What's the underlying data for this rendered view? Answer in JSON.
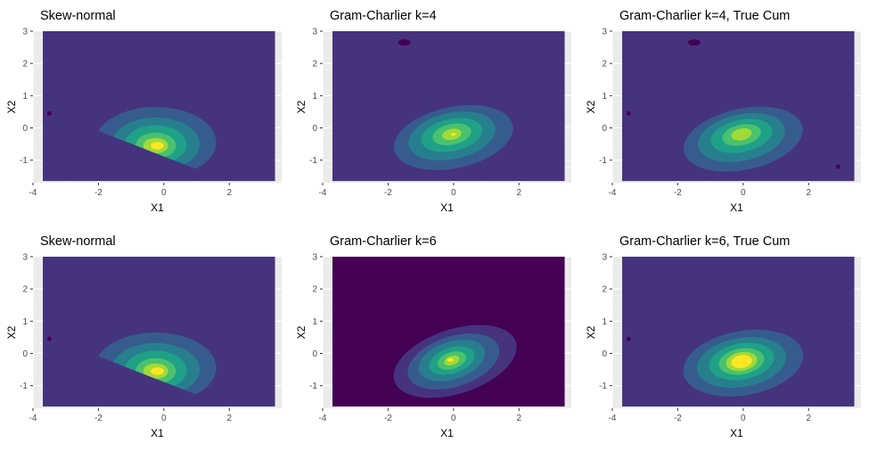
{
  "figure": {
    "background": "#ffffff"
  },
  "theme": {
    "panel_background": "#ebebeb",
    "grid_major": "#ffffff",
    "grid_minor": "#f4f4f4",
    "tick_text": "#4d4d4d",
    "title_text": "#000000"
  },
  "chart_data": [
    {
      "type": "contour",
      "title": "Skew-normal",
      "xlabel": "X1",
      "ylabel": "X2",
      "xlim": [
        -4,
        3.6
      ],
      "ylim": [
        -1.7,
        3.0
      ],
      "xticks": [
        -4,
        -2,
        0,
        2
      ],
      "yticks": [
        -1,
        0,
        1,
        2,
        3
      ],
      "fill_x_range": [
        -3.7,
        3.4
      ],
      "fill_y_range": [
        -1.65,
        3.0
      ],
      "background_level_color": "#46337e",
      "levels": [
        {
          "color": "#365c8d",
          "cx": -0.25,
          "cy": -0.45,
          "rx": 1.85,
          "ry": 1.1,
          "angle": 0
        },
        {
          "color": "#277f8e",
          "cx": -0.25,
          "cy": -0.5,
          "rx": 1.35,
          "ry": 0.82,
          "angle": 0
        },
        {
          "color": "#1fa187",
          "cx": -0.25,
          "cy": -0.52,
          "rx": 0.95,
          "ry": 0.6,
          "angle": 0
        },
        {
          "color": "#4ac16d",
          "cx": -0.25,
          "cy": -0.55,
          "rx": 0.62,
          "ry": 0.4,
          "angle": 0
        },
        {
          "color": "#a0da39",
          "cx": -0.25,
          "cy": -0.55,
          "rx": 0.38,
          "ry": 0.24,
          "angle": 0
        },
        {
          "color": "#fde725",
          "cx": -0.2,
          "cy": -0.55,
          "rx": 0.2,
          "ry": 0.12,
          "angle": 0
        }
      ],
      "clip": "skew",
      "specks": [
        {
          "x": -3.5,
          "y": 0.45,
          "color": "#440154"
        }
      ]
    },
    {
      "type": "contour",
      "title": "Gram-Charlier k=4",
      "xlabel": "X1",
      "ylabel": "X2",
      "xlim": [
        -4,
        3.6
      ],
      "ylim": [
        -1.7,
        3.0
      ],
      "xticks": [
        -4,
        -2,
        0,
        2
      ],
      "yticks": [
        -1,
        0,
        1,
        2,
        3
      ],
      "fill_x_range": [
        -3.7,
        3.4
      ],
      "fill_y_range": [
        -1.65,
        3.0
      ],
      "background_level_color": "#46337e",
      "levels": [
        {
          "color": "#365c8d",
          "cx": 0.0,
          "cy": -0.3,
          "rx": 1.85,
          "ry": 0.95,
          "angle": -12
        },
        {
          "color": "#277f8e",
          "cx": -0.05,
          "cy": -0.25,
          "rx": 1.35,
          "ry": 0.72,
          "angle": -12
        },
        {
          "color": "#1fa187",
          "cx": -0.05,
          "cy": -0.22,
          "rx": 0.95,
          "ry": 0.5,
          "angle": -12
        },
        {
          "color": "#4ac16d",
          "cx": -0.05,
          "cy": -0.2,
          "rx": 0.6,
          "ry": 0.32,
          "angle": -12
        },
        {
          "color": "#a0da39",
          "cx": -0.05,
          "cy": -0.2,
          "rx": 0.3,
          "ry": 0.17,
          "angle": -12
        },
        {
          "color": "#fde725",
          "cx": 0.0,
          "cy": -0.2,
          "rx": 0.08,
          "ry": 0.04,
          "angle": 0
        }
      ],
      "clip": "none",
      "specks": [
        {
          "x": -1.5,
          "y": 2.65,
          "color": "#440154",
          "big": true
        }
      ]
    },
    {
      "type": "contour",
      "title": "Gram-Charlier k=4, True Cum",
      "xlabel": "X1",
      "ylabel": "X2",
      "xlim": [
        -4,
        3.6
      ],
      "ylim": [
        -1.7,
        3.0
      ],
      "xticks": [
        -4,
        -2,
        0,
        2
      ],
      "yticks": [
        -1,
        0,
        1,
        2,
        3
      ],
      "fill_x_range": [
        -3.7,
        3.4
      ],
      "fill_y_range": [
        -1.65,
        3.0
      ],
      "background_level_color": "#46337e",
      "levels": [
        {
          "color": "#365c8d",
          "cx": 0.0,
          "cy": -0.35,
          "rx": 1.85,
          "ry": 0.95,
          "angle": -12
        },
        {
          "color": "#277f8e",
          "cx": -0.05,
          "cy": -0.3,
          "rx": 1.35,
          "ry": 0.72,
          "angle": -12
        },
        {
          "color": "#1fa187",
          "cx": -0.05,
          "cy": -0.25,
          "rx": 0.95,
          "ry": 0.5,
          "angle": -12
        },
        {
          "color": "#4ac16d",
          "cx": -0.05,
          "cy": -0.22,
          "rx": 0.6,
          "ry": 0.32,
          "angle": -12
        },
        {
          "color": "#a0da39",
          "cx": -0.05,
          "cy": -0.2,
          "rx": 0.32,
          "ry": 0.18,
          "angle": -12
        }
      ],
      "clip": "none",
      "specks": [
        {
          "x": -1.5,
          "y": 2.65,
          "color": "#440154",
          "big": true
        },
        {
          "x": -3.5,
          "y": 0.45,
          "color": "#440154"
        },
        {
          "x": 2.9,
          "y": -1.2,
          "color": "#440154"
        }
      ]
    },
    {
      "type": "contour",
      "title": "Skew-normal",
      "xlabel": "X1",
      "ylabel": "X2",
      "xlim": [
        -4,
        3.6
      ],
      "ylim": [
        -1.7,
        3.0
      ],
      "xticks": [
        -4,
        -2,
        0,
        2
      ],
      "yticks": [
        -1,
        0,
        1,
        2,
        3
      ],
      "fill_x_range": [
        -3.7,
        3.4
      ],
      "fill_y_range": [
        -1.65,
        3.0
      ],
      "background_level_color": "#46337e",
      "levels": [
        {
          "color": "#365c8d",
          "cx": -0.25,
          "cy": -0.45,
          "rx": 1.85,
          "ry": 1.1,
          "angle": 0
        },
        {
          "color": "#277f8e",
          "cx": -0.25,
          "cy": -0.5,
          "rx": 1.35,
          "ry": 0.82,
          "angle": 0
        },
        {
          "color": "#1fa187",
          "cx": -0.25,
          "cy": -0.52,
          "rx": 0.95,
          "ry": 0.6,
          "angle": 0
        },
        {
          "color": "#4ac16d",
          "cx": -0.25,
          "cy": -0.55,
          "rx": 0.62,
          "ry": 0.4,
          "angle": 0
        },
        {
          "color": "#a0da39",
          "cx": -0.25,
          "cy": -0.55,
          "rx": 0.38,
          "ry": 0.24,
          "angle": 0
        },
        {
          "color": "#fde725",
          "cx": -0.2,
          "cy": -0.55,
          "rx": 0.2,
          "ry": 0.12,
          "angle": 0
        }
      ],
      "clip": "skew",
      "specks": [
        {
          "x": -3.5,
          "y": 0.45,
          "color": "#440154"
        }
      ]
    },
    {
      "type": "contour",
      "title": "Gram-Charlier k=6",
      "xlabel": "X1",
      "ylabel": "X2",
      "xlim": [
        -4,
        3.6
      ],
      "ylim": [
        -1.7,
        3.0
      ],
      "xticks": [
        -4,
        -2,
        0,
        2
      ],
      "yticks": [
        -1,
        0,
        1,
        2,
        3
      ],
      "fill_x_range": [
        -3.7,
        3.4
      ],
      "fill_y_range": [
        -1.65,
        3.0
      ],
      "background_level_color": "#440154",
      "levels": [
        {
          "color": "#46337e",
          "cx": 0.05,
          "cy": -0.25,
          "rx": 1.95,
          "ry": 1.0,
          "angle": -18
        },
        {
          "color": "#365c8d",
          "cx": 0.0,
          "cy": -0.25,
          "rx": 1.45,
          "ry": 0.78,
          "angle": -18
        },
        {
          "color": "#277f8e",
          "cx": -0.05,
          "cy": -0.22,
          "rx": 1.05,
          "ry": 0.58,
          "angle": -18
        },
        {
          "color": "#1fa187",
          "cx": -0.05,
          "cy": -0.22,
          "rx": 0.72,
          "ry": 0.4,
          "angle": -18
        },
        {
          "color": "#4ac16d",
          "cx": -0.05,
          "cy": -0.22,
          "rx": 0.45,
          "ry": 0.26,
          "angle": -18
        },
        {
          "color": "#a0da39",
          "cx": -0.05,
          "cy": -0.22,
          "rx": 0.24,
          "ry": 0.14,
          "angle": -18
        },
        {
          "color": "#fde725",
          "cx": -0.1,
          "cy": -0.2,
          "rx": 0.1,
          "ry": 0.06,
          "angle": 0
        }
      ],
      "clip": "none",
      "specks": []
    },
    {
      "type": "contour",
      "title": "Gram-Charlier k=6, True Cum",
      "xlabel": "X1",
      "ylabel": "X2",
      "xlim": [
        -4,
        3.6
      ],
      "ylim": [
        -1.7,
        3.0
      ],
      "xticks": [
        -4,
        -2,
        0,
        2
      ],
      "yticks": [
        -1,
        0,
        1,
        2,
        3
      ],
      "fill_x_range": [
        -3.7,
        3.4
      ],
      "fill_y_range": [
        -1.65,
        3.0
      ],
      "background_level_color": "#46337e",
      "levels": [
        {
          "color": "#365c8d",
          "cx": 0.0,
          "cy": -0.3,
          "rx": 1.85,
          "ry": 1.0,
          "angle": -10
        },
        {
          "color": "#277f8e",
          "cx": -0.05,
          "cy": -0.28,
          "rx": 1.38,
          "ry": 0.76,
          "angle": -10
        },
        {
          "color": "#1fa187",
          "cx": -0.05,
          "cy": -0.25,
          "rx": 1.0,
          "ry": 0.56,
          "angle": -10
        },
        {
          "color": "#4ac16d",
          "cx": -0.05,
          "cy": -0.25,
          "rx": 0.7,
          "ry": 0.4,
          "angle": -10
        },
        {
          "color": "#a0da39",
          "cx": -0.05,
          "cy": -0.25,
          "rx": 0.48,
          "ry": 0.29,
          "angle": -10
        },
        {
          "color": "#fde725",
          "cx": -0.05,
          "cy": -0.25,
          "rx": 0.32,
          "ry": 0.2,
          "angle": -10
        }
      ],
      "clip": "none",
      "specks": [
        {
          "x": -3.5,
          "y": 0.45,
          "color": "#440154"
        }
      ]
    }
  ]
}
